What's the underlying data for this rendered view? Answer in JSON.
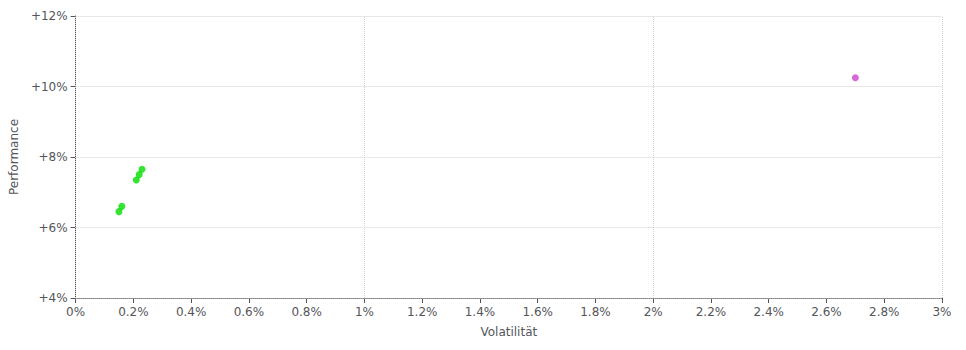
{
  "chart_data": {
    "type": "scatter",
    "xlabel": "Volatilität",
    "ylabel": "Performance",
    "xlim": [
      0.0,
      0.03
    ],
    "ylim": [
      0.04,
      0.12
    ],
    "xticks": [
      {
        "value": 0.0,
        "label": "0%"
      },
      {
        "value": 0.002,
        "label": "0.2%"
      },
      {
        "value": 0.004,
        "label": "0.4%"
      },
      {
        "value": 0.006,
        "label": "0.6%"
      },
      {
        "value": 0.008,
        "label": "0.8%"
      },
      {
        "value": 0.01,
        "label": "1%"
      },
      {
        "value": 0.012,
        "label": "1.2%"
      },
      {
        "value": 0.014,
        "label": "1.4%"
      },
      {
        "value": 0.016,
        "label": "1.6%"
      },
      {
        "value": 0.018,
        "label": "1.8%"
      },
      {
        "value": 0.02,
        "label": "2%"
      },
      {
        "value": 0.022,
        "label": "2.2%"
      },
      {
        "value": 0.024,
        "label": "2.4%"
      },
      {
        "value": 0.026,
        "label": "2.6%"
      },
      {
        "value": 0.028,
        "label": "2.8%"
      },
      {
        "value": 0.03,
        "label": "3%"
      }
    ],
    "yticks": [
      {
        "value": 0.04,
        "label": "+4%"
      },
      {
        "value": 0.06,
        "label": "+6%"
      },
      {
        "value": 0.08,
        "label": "+8%"
      },
      {
        "value": 0.1,
        "label": "+10%"
      },
      {
        "value": 0.12,
        "label": "+12%"
      }
    ],
    "grid": true,
    "marker": "circle",
    "series": [
      {
        "color": "#00dd00",
        "x": [
          0.0015,
          0.0016,
          0.0021,
          0.0022,
          0.0023
        ],
        "values": [
          0.0645,
          0.066,
          0.0735,
          0.075,
          0.0765
        ]
      },
      {
        "color": "#cc44cc",
        "x": [
          0.027
        ],
        "values": [
          0.1025
        ]
      }
    ]
  }
}
